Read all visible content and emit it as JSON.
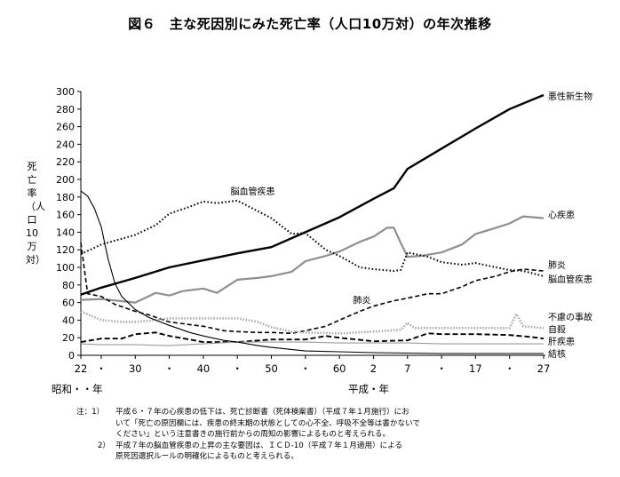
{
  "title": "図６　主な死因別にみた死亡率（人口10万対）の年次推移",
  "ylabel": "死亡率（人口10万対）",
  "era_labels": {
    "showa": "昭和・・年",
    "heisei": "平成・年"
  },
  "notes": {
    "label": "注：",
    "items": [
      {
        "mark": "1）",
        "text": "平成６・７年の心疾患の低下は、死亡診断書（死体検案書）（平成７年１月施行）にお\nいて「死亡の原因欄には、疾患の終末期の状態としての心不全、呼吸不全等は書かないで\nください」という注意書きの施行前からの周知の影響によるものと考えられる。"
      },
      {
        "mark": "2）",
        "text": "平成７年の脳血管疾患の上昇の主な要因は、ＩＣＤ-10（平成７年１月適用）による\n原死因選択ルールの明確化によるものと考えられる。"
      }
    ]
  },
  "chart_data": {
    "type": "line",
    "title": "主な死因別にみた死亡率（人口10万対）の年次推移",
    "xlabel": "",
    "ylabel": "死亡率（人口10万対）",
    "ylim": [
      0,
      300
    ],
    "yticks": [
      0,
      20,
      40,
      60,
      80,
      100,
      120,
      140,
      160,
      180,
      200,
      220,
      240,
      260,
      280,
      300
    ],
    "xlim": [
      1947,
      2015
    ],
    "x_ticks": [
      {
        "x": 1947,
        "label": "22"
      },
      {
        "x": 1950,
        "label": "・"
      },
      {
        "x": 1955,
        "label": "30"
      },
      {
        "x": 1960,
        "label": "・"
      },
      {
        "x": 1965,
        "label": "40"
      },
      {
        "x": 1970,
        "label": "・"
      },
      {
        "x": 1975,
        "label": "50"
      },
      {
        "x": 1980,
        "label": "・"
      },
      {
        "x": 1985,
        "label": "60"
      },
      {
        "x": 1990,
        "label": "2"
      },
      {
        "x": 1995,
        "label": "7"
      },
      {
        "x": 2000,
        "label": "・"
      },
      {
        "x": 2005,
        "label": "17"
      },
      {
        "x": 2010,
        "label": "・"
      },
      {
        "x": 2015,
        "label": "27"
      }
    ],
    "grid": false,
    "series": [
      {
        "name": "悪性新生物",
        "style": "solid-thick",
        "color": "#000000",
        "points": [
          [
            1947,
            69
          ],
          [
            1950,
            77
          ],
          [
            1955,
            88
          ],
          [
            1960,
            100
          ],
          [
            1965,
            108
          ],
          [
            1970,
            116
          ],
          [
            1975,
            123
          ],
          [
            1980,
            140
          ],
          [
            1985,
            157
          ],
          [
            1990,
            178
          ],
          [
            1993,
            190
          ],
          [
            1995,
            212
          ],
          [
            2000,
            235
          ],
          [
            2005,
            258
          ],
          [
            2010,
            280
          ],
          [
            2015,
            296
          ]
        ]
      },
      {
        "name": "心疾患",
        "style": "solid",
        "color": "#8f8f8f",
        "points": [
          [
            1947,
            63
          ],
          [
            1950,
            64
          ],
          [
            1955,
            60
          ],
          [
            1958,
            71
          ],
          [
            1960,
            68
          ],
          [
            1962,
            73
          ],
          [
            1965,
            76
          ],
          [
            1967,
            71
          ],
          [
            1970,
            86
          ],
          [
            1973,
            88
          ],
          [
            1975,
            90
          ],
          [
            1978,
            95
          ],
          [
            1980,
            107
          ],
          [
            1983,
            113
          ],
          [
            1985,
            118
          ],
          [
            1988,
            129
          ],
          [
            1990,
            135
          ],
          [
            1992,
            145
          ],
          [
            1993,
            145
          ],
          [
            1994,
            128
          ],
          [
            1995,
            112
          ],
          [
            1997,
            113
          ],
          [
            2000,
            117
          ],
          [
            2003,
            126
          ],
          [
            2005,
            138
          ],
          [
            2008,
            145
          ],
          [
            2010,
            150
          ],
          [
            2012,
            158
          ],
          [
            2015,
            156
          ]
        ]
      },
      {
        "name": "脳血管疾患",
        "style": "dotted",
        "color": "#000000",
        "points": [
          [
            1947,
            115
          ],
          [
            1950,
            126
          ],
          [
            1955,
            137
          ],
          [
            1958,
            148
          ],
          [
            1960,
            161
          ],
          [
            1963,
            169
          ],
          [
            1965,
            175
          ],
          [
            1967,
            173
          ],
          [
            1970,
            176
          ],
          [
            1972,
            168
          ],
          [
            1975,
            156
          ],
          [
            1978,
            138
          ],
          [
            1980,
            139
          ],
          [
            1983,
            120
          ],
          [
            1985,
            113
          ],
          [
            1988,
            100
          ],
          [
            1990,
            98
          ],
          [
            1993,
            96
          ],
          [
            1994,
            97
          ],
          [
            1995,
            117
          ],
          [
            1998,
            112
          ],
          [
            2000,
            106
          ],
          [
            2003,
            103
          ],
          [
            2005,
            105
          ],
          [
            2008,
            100
          ],
          [
            2010,
            97
          ],
          [
            2012,
            96
          ],
          [
            2015,
            90
          ]
        ]
      },
      {
        "name": "肺炎",
        "style": "dashed",
        "color": "#000000",
        "points": [
          [
            1947,
            128
          ],
          [
            1948,
            70
          ],
          [
            1950,
            67
          ],
          [
            1952,
            58
          ],
          [
            1955,
            50
          ],
          [
            1957,
            46
          ],
          [
            1960,
            38
          ],
          [
            1963,
            35
          ],
          [
            1965,
            33
          ],
          [
            1968,
            28
          ],
          [
            1970,
            27
          ],
          [
            1973,
            26
          ],
          [
            1975,
            26
          ],
          [
            1978,
            25
          ],
          [
            1980,
            28
          ],
          [
            1983,
            33
          ],
          [
            1985,
            40
          ],
          [
            1988,
            50
          ],
          [
            1990,
            56
          ],
          [
            1993,
            62
          ],
          [
            1995,
            65
          ],
          [
            1998,
            70
          ],
          [
            2000,
            70
          ],
          [
            2003,
            78
          ],
          [
            2005,
            85
          ],
          [
            2008,
            90
          ],
          [
            2010,
            95
          ],
          [
            2012,
            98
          ],
          [
            2015,
            96
          ]
        ]
      },
      {
        "name": "不慮の事故",
        "style": "dotted-thick-gray",
        "color": "#a8a8a8",
        "points": [
          [
            1947,
            50
          ],
          [
            1950,
            40
          ],
          [
            1953,
            38
          ],
          [
            1955,
            38
          ],
          [
            1958,
            40
          ],
          [
            1960,
            42
          ],
          [
            1965,
            42
          ],
          [
            1970,
            42
          ],
          [
            1973,
            38
          ],
          [
            1975,
            32
          ],
          [
            1978,
            27
          ],
          [
            1980,
            26
          ],
          [
            1985,
            25
          ],
          [
            1990,
            27
          ],
          [
            1994,
            29
          ],
          [
            1995,
            37
          ],
          [
            1996,
            31
          ],
          [
            2000,
            31
          ],
          [
            2005,
            31
          ],
          [
            2010,
            31
          ],
          [
            2011,
            47
          ],
          [
            2012,
            33
          ],
          [
            2015,
            31
          ]
        ]
      },
      {
        "name": "自殺",
        "style": "dashed-thick",
        "color": "#000000",
        "points": [
          [
            1947,
            15
          ],
          [
            1950,
            19
          ],
          [
            1953,
            19
          ],
          [
            1955,
            24
          ],
          [
            1958,
            26
          ],
          [
            1960,
            22
          ],
          [
            1963,
            18
          ],
          [
            1965,
            15
          ],
          [
            1968,
            15
          ],
          [
            1970,
            15
          ],
          [
            1975,
            18
          ],
          [
            1980,
            18
          ],
          [
            1983,
            22
          ],
          [
            1985,
            20
          ],
          [
            1990,
            16
          ],
          [
            1995,
            17
          ],
          [
            1998,
            25
          ],
          [
            2000,
            24
          ],
          [
            2005,
            24
          ],
          [
            2010,
            23
          ],
          [
            2013,
            21
          ],
          [
            2015,
            19
          ]
        ]
      },
      {
        "name": "肝疾患",
        "style": "solid-thin",
        "color": "#9a9a9a",
        "points": [
          [
            1947,
            13
          ],
          [
            1950,
            12
          ],
          [
            1955,
            12
          ],
          [
            1960,
            11
          ],
          [
            1965,
            13
          ],
          [
            1970,
            15
          ],
          [
            1975,
            15
          ],
          [
            1980,
            15
          ],
          [
            1985,
            14
          ],
          [
            1990,
            14
          ],
          [
            1995,
            14
          ],
          [
            2000,
            13
          ],
          [
            2005,
            13
          ],
          [
            2010,
            13
          ],
          [
            2015,
            13
          ]
        ]
      },
      {
        "name": "結核",
        "style": "solid-thin",
        "color": "#000000",
        "points": [
          [
            1947,
            187
          ],
          [
            1948,
            181
          ],
          [
            1949,
            167
          ],
          [
            1950,
            146
          ],
          [
            1951,
            110
          ],
          [
            1952,
            82
          ],
          [
            1953,
            67
          ],
          [
            1955,
            52
          ],
          [
            1957,
            43
          ],
          [
            1960,
            34
          ],
          [
            1963,
            26
          ],
          [
            1965,
            22
          ],
          [
            1968,
            17
          ],
          [
            1970,
            15
          ],
          [
            1973,
            11
          ],
          [
            1975,
            9
          ],
          [
            1980,
            5
          ],
          [
            1985,
            4
          ],
          [
            1990,
            3
          ],
          [
            1995,
            2.5
          ],
          [
            2000,
            2
          ],
          [
            2005,
            2
          ],
          [
            2010,
            2
          ],
          [
            2015,
            2
          ]
        ]
      }
    ],
    "annotations": [
      {
        "text": "脳血管疾患",
        "x": 1969,
        "y": 183
      },
      {
        "text": "肺炎",
        "x": 1987,
        "y": 59
      }
    ],
    "legend_labels": [
      {
        "text": "悪性新生物",
        "y": 295
      },
      {
        "text": "心疾患",
        "y": 160
      },
      {
        "text": "肺炎",
        "y": 103
      },
      {
        "text": "脳血管疾患",
        "y": 87
      },
      {
        "text": "不慮の事故",
        "y": 44
      },
      {
        "text": "自殺",
        "y": 30
      },
      {
        "text": "肝疾患",
        "y": 16
      },
      {
        "text": "結核",
        "y": 2
      }
    ]
  }
}
